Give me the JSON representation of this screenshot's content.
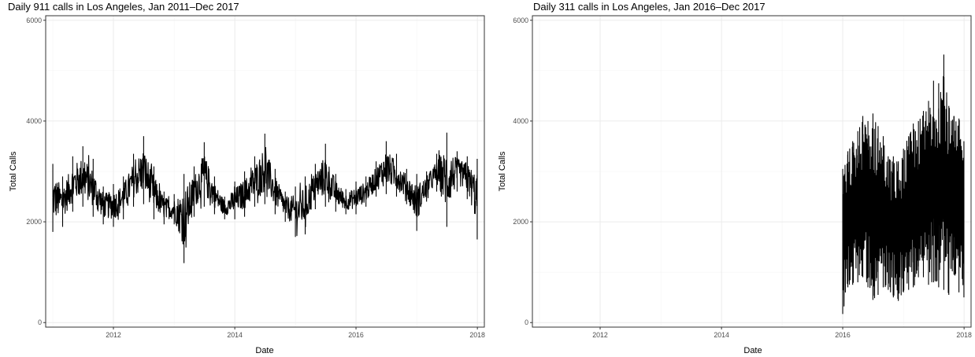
{
  "chart_data": [
    {
      "type": "line",
      "title": "Daily 911 calls in Los Angeles, Jan 2011–Dec 2017",
      "xlabel": "Date",
      "ylabel": "Total Calls",
      "xlim": [
        "2010-11-19",
        "2018-02-12"
      ],
      "ylim": [
        -90,
        6090
      ],
      "x_ticks": [
        "2012",
        "2014",
        "2016",
        "2018"
      ],
      "y_ticks": [
        0,
        2000,
        4000,
        6000
      ],
      "grid": true,
      "legend": "none",
      "series": [
        {
          "x": [
            "2011-01-01",
            "2011-03-01",
            "2011-05-01",
            "2011-07-01",
            "2011-09-01",
            "2011-11-01",
            "2012-01-01",
            "2012-03-01",
            "2012-05-01",
            "2012-07-01",
            "2012-09-01",
            "2012-11-01",
            "2013-01-01",
            "2013-03-01",
            "2013-05-01",
            "2013-07-01",
            "2013-09-01",
            "2013-11-01",
            "2014-01-01",
            "2014-03-01",
            "2014-05-01",
            "2014-07-01",
            "2014-09-01",
            "2014-11-01",
            "2015-01-01",
            "2015-03-01",
            "2015-05-01",
            "2015-07-01",
            "2015-09-01",
            "2015-11-01",
            "2016-01-01",
            "2016-03-01",
            "2016-05-01",
            "2016-07-01",
            "2016-09-01",
            "2016-11-01",
            "2017-01-01",
            "2017-03-01",
            "2017-05-01",
            "2017-07-01",
            "2017-09-01",
            "2017-11-01",
            "2017-12-31"
          ],
          "high": [
            3150,
            2900,
            3300,
            3500,
            3250,
            2700,
            2750,
            2900,
            3350,
            3700,
            3100,
            2600,
            2550,
            2950,
            3100,
            3580,
            2900,
            2500,
            2800,
            3000,
            3300,
            3750,
            3050,
            2600,
            2700,
            2900,
            3150,
            3550,
            2950,
            2650,
            2800,
            2900,
            3200,
            3600,
            3350,
            3050,
            2950,
            3000,
            3350,
            3770,
            3400,
            3300,
            3250
          ],
          "low": [
            1800,
            1900,
            2200,
            2300,
            2100,
            1950,
            1900,
            2050,
            2300,
            2350,
            2050,
            1950,
            1950,
            1180,
            2100,
            2300,
            2150,
            2050,
            2050,
            2100,
            2300,
            2350,
            2150,
            2000,
            1700,
            1750,
            2250,
            2300,
            2200,
            2150,
            2150,
            2300,
            2500,
            2550,
            2500,
            2350,
            1820,
            2400,
            2600,
            1900,
            2600,
            2450,
            1650
          ]
        }
      ]
    },
    {
      "type": "line",
      "title": "Daily 311 calls in Los Angeles, Jan 2016–Dec 2017",
      "xlabel": "Date",
      "ylabel": "Total Calls",
      "xlim": [
        "2010-11-19",
        "2018-02-12"
      ],
      "ylim": [
        -90,
        6090
      ],
      "x_ticks": [
        "2012",
        "2014",
        "2016",
        "2018"
      ],
      "y_ticks": [
        0,
        2000,
        4000,
        6000
      ],
      "grid": true,
      "legend": "none",
      "series": [
        {
          "x": [
            "2016-01-01",
            "2016-02-01",
            "2016-03-01",
            "2016-04-01",
            "2016-05-01",
            "2016-06-01",
            "2016-07-01",
            "2016-08-01",
            "2016-09-01",
            "2016-10-01",
            "2016-11-01",
            "2016-12-01",
            "2017-01-01",
            "2017-02-01",
            "2017-03-01",
            "2017-04-01",
            "2017-05-01",
            "2017-06-01",
            "2017-07-01",
            "2017-08-01",
            "2017-09-01",
            "2017-10-01",
            "2017-11-01",
            "2017-12-01",
            "2017-12-31"
          ],
          "high": [
            3050,
            3400,
            3600,
            3800,
            4100,
            4000,
            4150,
            3900,
            3700,
            3300,
            3300,
            3200,
            3450,
            3700,
            3950,
            4000,
            4200,
            4400,
            4800,
            4750,
            5320,
            4300,
            4100,
            4050,
            3600
          ],
          "low": [
            170,
            700,
            750,
            800,
            900,
            700,
            450,
            550,
            700,
            650,
            500,
            430,
            600,
            650,
            700,
            900,
            900,
            750,
            800,
            700,
            650,
            550,
            950,
            600,
            500
          ]
        }
      ]
    }
  ]
}
